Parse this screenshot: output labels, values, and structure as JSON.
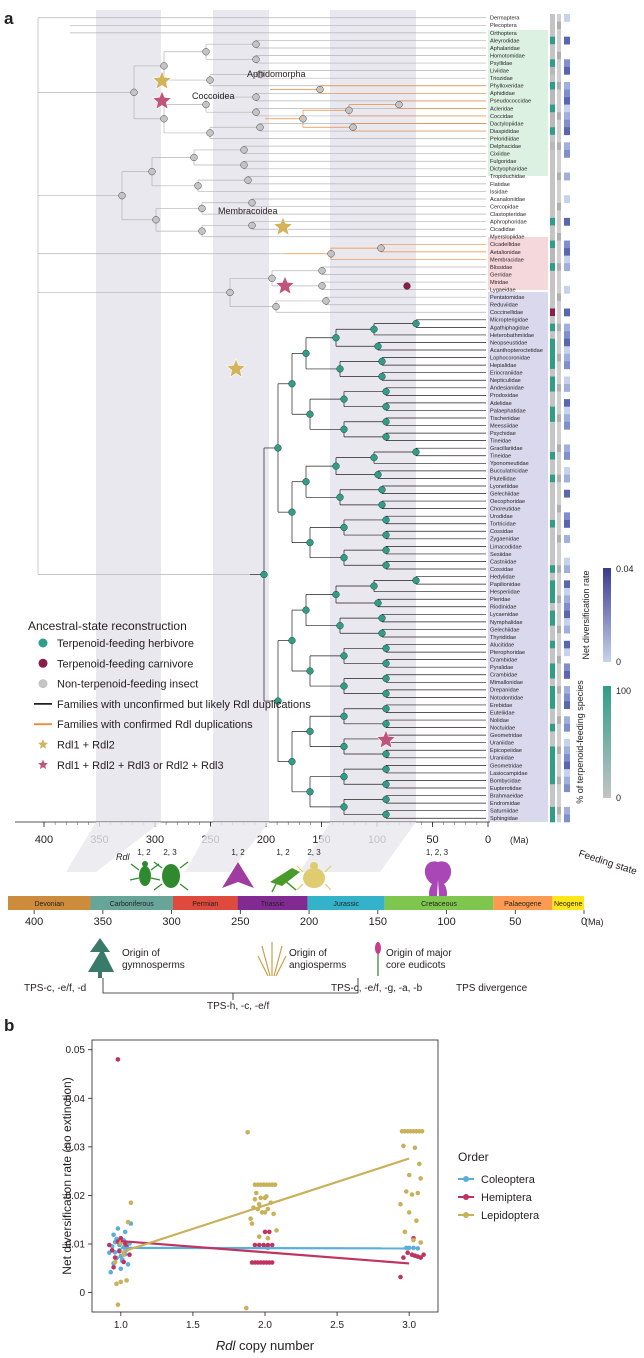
{
  "panel_a": {
    "label": "a",
    "clade_labels": [
      "Aphidomorpha",
      "Coccoidea",
      "Membracoidea"
    ],
    "families_hemiptera": [
      {
        "n": "Dermaptera",
        "c": "grey"
      },
      {
        "n": "Plecoptera",
        "c": "grey"
      },
      {
        "n": "Orthoptera",
        "c": "grey"
      },
      {
        "n": "Aleyrodidae",
        "c": "dark"
      },
      {
        "n": "Aphalaridae",
        "c": "grey"
      },
      {
        "n": "Homotomidae",
        "c": "grey"
      },
      {
        "n": "Psyllidae",
        "c": "dark"
      },
      {
        "n": "Liviidae",
        "c": "dark"
      },
      {
        "n": "Triozidae",
        "c": "grey"
      },
      {
        "n": "Phylloxeridae",
        "c": "dark"
      },
      {
        "n": "Aphididae",
        "c": "dark"
      },
      {
        "n": "Pseudococcidae",
        "c": "dark"
      },
      {
        "n": "Acleridae",
        "c": "dark"
      },
      {
        "n": "Coccidae",
        "c": "dark"
      },
      {
        "n": "Dactylopiidae",
        "c": "dark"
      },
      {
        "n": "Diaspididae",
        "c": "dark"
      },
      {
        "n": "Peloridiidae",
        "c": "grey"
      },
      {
        "n": "Delphacidae",
        "c": "dark"
      },
      {
        "n": "Cixiidae",
        "c": "grey"
      },
      {
        "n": "Fulgoridae",
        "c": "grey"
      },
      {
        "n": "Dictyopharidae",
        "c": "grey"
      },
      {
        "n": "Tropiduchidae",
        "c": "grey"
      },
      {
        "n": "Flatidae",
        "c": "grey"
      },
      {
        "n": "Issidae",
        "c": "grey"
      },
      {
        "n": "Acanaloniidae",
        "c": "grey"
      },
      {
        "n": "Cercopidae",
        "c": "grey"
      },
      {
        "n": "Clastopteridae",
        "c": "grey"
      },
      {
        "n": "Aphrophoridae",
        "c": "dark"
      },
      {
        "n": "Cicadidae",
        "c": "grey"
      },
      {
        "n": "Myerslopiidae",
        "c": "grey"
      },
      {
        "n": "Cicadellidae",
        "c": "dark"
      },
      {
        "n": "Aetalionidae",
        "c": "dark"
      },
      {
        "n": "Membracidae",
        "c": "dark"
      },
      {
        "n": "Blissidae",
        "c": "dark"
      },
      {
        "n": "Gerridae",
        "c": "grey"
      },
      {
        "n": "Miridae",
        "c": "grey"
      },
      {
        "n": "Lygaeidae",
        "c": "grey"
      },
      {
        "n": "Pentatomidae",
        "c": "grey"
      },
      {
        "n": "Reduviidae",
        "c": "grey"
      },
      {
        "n": "Coccinellidae",
        "c": "dark"
      }
    ],
    "families_lepidoptera": [
      {
        "n": "Micropterigidae",
        "c": "grey"
      },
      {
        "n": "Agathiphagidae",
        "c": "dark"
      },
      {
        "n": "Heterobathmiidae",
        "c": "grey"
      },
      {
        "n": "Neopseustidae",
        "c": "dark"
      },
      {
        "n": "Acanthopteroctetidae",
        "c": "dark"
      },
      {
        "n": "Lophocoronidae",
        "c": "dark"
      },
      {
        "n": "Hepialidae",
        "c": "dark"
      },
      {
        "n": "Eriocraniidae",
        "c": "grey"
      },
      {
        "n": "Nepticulidae",
        "c": "dark"
      },
      {
        "n": "Andesianidae",
        "c": "dark"
      },
      {
        "n": "Prodoxidae",
        "c": "grey"
      },
      {
        "n": "Adelidae",
        "c": "grey"
      },
      {
        "n": "Palaephatidae",
        "c": "dark"
      },
      {
        "n": "Tischeriidae",
        "c": "dark"
      },
      {
        "n": "Meessiidae",
        "c": "grey"
      },
      {
        "n": "Psychidae",
        "c": "grey"
      },
      {
        "n": "Tineidae",
        "c": "grey"
      },
      {
        "n": "Gracillariidae",
        "c": "grey"
      },
      {
        "n": "Tineidae",
        "c": "dark"
      },
      {
        "n": "Yponomeutidae",
        "c": "grey"
      },
      {
        "n": "Bucculatricidae",
        "c": "grey"
      },
      {
        "n": "Plutellidae",
        "c": "dark"
      },
      {
        "n": "Lyonetiidae",
        "c": "grey"
      },
      {
        "n": "Gelechiidae",
        "c": "grey"
      },
      {
        "n": "Oecophoridae",
        "c": "grey"
      },
      {
        "n": "Choreutidae",
        "c": "grey"
      },
      {
        "n": "Urodidae",
        "c": "grey"
      },
      {
        "n": "Tortricidae",
        "c": "dark"
      },
      {
        "n": "Cossidae",
        "c": "grey"
      },
      {
        "n": "Zygaenidae",
        "c": "grey"
      },
      {
        "n": "Limacodidae",
        "c": "grey"
      },
      {
        "n": "Sesiidae",
        "c": "grey"
      },
      {
        "n": "Castniidae",
        "c": "grey"
      },
      {
        "n": "Cossidae",
        "c": "dark"
      },
      {
        "n": "Hedylidae",
        "c": "grey"
      },
      {
        "n": "Papilionidae",
        "c": "dark"
      },
      {
        "n": "Hesperiidae",
        "c": "dark"
      },
      {
        "n": "Pieridae",
        "c": "dark"
      },
      {
        "n": "Riodinidae",
        "c": "grey"
      },
      {
        "n": "Lycaenidae",
        "c": "dark"
      },
      {
        "n": "Nymphalidae",
        "c": "dark"
      },
      {
        "n": "Gelechiidae",
        "c": "grey"
      },
      {
        "n": "Thyrididae",
        "c": "grey"
      },
      {
        "n": "Alucitidae",
        "c": "dark"
      },
      {
        "n": "Pterophoridae",
        "c": "grey"
      },
      {
        "n": "Crambidae",
        "c": "grey"
      },
      {
        "n": "Pyralidae",
        "c": "dark"
      },
      {
        "n": "Crambidae",
        "c": "dark"
      },
      {
        "n": "Mimallonidae",
        "c": "grey"
      },
      {
        "n": "Drepanidae",
        "c": "dark"
      },
      {
        "n": "Notodontidae",
        "c": "dark"
      },
      {
        "n": "Erebidae",
        "c": "dark"
      },
      {
        "n": "Euteliidae",
        "c": "grey"
      },
      {
        "n": "Nolidae",
        "c": "grey"
      },
      {
        "n": "Noctuidae",
        "c": "dark"
      },
      {
        "n": "Geometridae",
        "c": "grey"
      },
      {
        "n": "Uraniidae",
        "c": "grey"
      },
      {
        "n": "Epicopeiidae",
        "c": "dark"
      },
      {
        "n": "Uraniidae",
        "c": "dark"
      },
      {
        "n": "Geometridae",
        "c": "dark"
      },
      {
        "n": "Lasiocampidae",
        "c": "dark"
      },
      {
        "n": "Bombycidae",
        "c": "dark"
      },
      {
        "n": "Eupterotidae",
        "c": "grey"
      },
      {
        "n": "Brahmaeidae",
        "c": "grey"
      },
      {
        "n": "Endromidae",
        "c": "grey"
      },
      {
        "n": "Saturniidae",
        "c": "dark"
      },
      {
        "n": "Sphingidae",
        "c": "dark"
      }
    ],
    "legend_title": "Ancestral-state reconstruction",
    "legend_items": [
      {
        "label": "Terpenoid-feeding herbivore",
        "color": "#2e9e88",
        "shape": "dot"
      },
      {
        "label": "Terpenoid-feeding carnivore",
        "color": "#8c1c4a",
        "shape": "dot"
      },
      {
        "label": "Non-terpenoid-feeding insect",
        "color": "#c4c4c4",
        "shape": "dot"
      },
      {
        "label": "Families with unconfirmed but likely Rdl duplications",
        "color": "#231f20",
        "shape": "line"
      },
      {
        "label": "Families with confirmed Rdl duplications",
        "color": "#f08a3c",
        "shape": "line"
      },
      {
        "label": "Rdl1 + Rdl2",
        "color": "#d3b45c",
        "shape": "star"
      },
      {
        "label": "Rdl1 + Rdl2 + Rdl3 or Rdl2 + Rdl3",
        "color": "#c1547a",
        "shape": "star"
      }
    ],
    "top_axis_ticks": [
      "400",
      "350",
      "300",
      "250",
      "200",
      "150",
      "100",
      "50",
      "0"
    ],
    "top_axis_unit": "(Ma)",
    "feeding_label": "Feeding state",
    "colorbar1": {
      "title": "Net diversification rate",
      "max": "0.04",
      "min": "0",
      "low_color": "#c7d3ea",
      "high_color": "#3a3a8f"
    },
    "colorbar2": {
      "title": "% of terpenoid-feeding species",
      "max": "100",
      "min": "0",
      "low_color": "#c4c4c4",
      "high_color": "#2e9e88"
    },
    "rdl_label": "Rdl",
    "silhouette_labels": [
      "1, 2",
      "2, 3",
      "1, 2",
      "1, 2",
      "2, 3",
      "1, 2, 3"
    ],
    "periods": [
      {
        "name": "Devonian",
        "start": 419,
        "end": 359,
        "color": "#cc8c3c"
      },
      {
        "name": "Carboniferous",
        "start": 359,
        "end": 299,
        "color": "#67a599"
      },
      {
        "name": "Permian",
        "start": 299,
        "end": 252,
        "color": "#e04a3c"
      },
      {
        "name": "Triassic",
        "start": 252,
        "end": 201,
        "color": "#812b92"
      },
      {
        "name": "Jurassic",
        "start": 201,
        "end": 145,
        "color": "#34b2c9"
      },
      {
        "name": "Cretaceous",
        "start": 145,
        "end": 66,
        "color": "#7fc64e"
      },
      {
        "name": "Palaeogene",
        "start": 66,
        "end": 23,
        "color": "#fd9a52"
      },
      {
        "name": "Neogene",
        "start": 23,
        "end": 0,
        "color": "#ffe619"
      }
    ],
    "bottom_axis_ticks": [
      "400",
      "350",
      "300",
      "250",
      "200",
      "150",
      "100",
      "50",
      "0"
    ],
    "bottom_axis_unit": "(Ma)",
    "origins": [
      {
        "line1": "Origin of",
        "line2": "gymnosperms"
      },
      {
        "line1": "Origin of",
        "line2": "angiosperms"
      },
      {
        "line1": "Origin of major",
        "line2": "core eudicots"
      }
    ],
    "tps_labels": [
      "TPS-c, -e/f, -d",
      "TPS-h, -c, -e/f",
      "TPS-c, -e/f, -g, -a, -b",
      "TPS divergence"
    ]
  },
  "chart_data": {
    "type": "scatter",
    "panel_label": "b",
    "xlabel_italic": "Rdl",
    "xlabel_rest": " copy number",
    "ylabel": "Net diversification rate (no extinction)",
    "x_ticks": [
      "1.0",
      "1.5",
      "2.0",
      "2.5",
      "3.0"
    ],
    "y_ticks": [
      "0",
      "0.01",
      "0.02",
      "0.03",
      "0.04",
      "0.05"
    ],
    "xlim": [
      0.8,
      3.2
    ],
    "ylim": [
      -0.004,
      0.052
    ],
    "legend_title": "Order",
    "series": [
      {
        "name": "Coleoptera",
        "color": "#5aaedc",
        "fit": [
          [
            1,
            0.0092
          ],
          [
            3,
            0.0091
          ]
        ],
        "points": [
          [
            0.93,
            0.0042
          ],
          [
            0.95,
            0.006
          ],
          [
            0.96,
            0.0083
          ],
          [
            0.97,
            0.011
          ],
          [
            0.98,
            0.0132
          ],
          [
            0.99,
            0.0098
          ],
          [
            1.0,
            0.0075
          ],
          [
            1.01,
            0.0065
          ],
          [
            1.02,
            0.0108
          ],
          [
            1.03,
            0.0125
          ],
          [
            1.04,
            0.0088
          ],
          [
            1.05,
            0.0058
          ],
          [
            0.94,
            0.0095
          ],
          [
            0.97,
            0.0071
          ],
          [
            1.0,
            0.0049
          ],
          [
            1.03,
            0.0079
          ],
          [
            1.06,
            0.0101
          ],
          [
            0.95,
            0.0119
          ],
          [
            0.99,
            0.0087
          ],
          [
            1.02,
            0.0093
          ],
          [
            1.07,
            0.0142
          ],
          [
            0.92,
            0.0082
          ],
          [
            0.96,
            0.0104
          ],
          [
            1.01,
            0.0068
          ],
          [
            2.0,
            0.0094
          ],
          [
            2.02,
            0.0092
          ],
          [
            2.98,
            0.0092
          ],
          [
            3.0,
            0.0092
          ],
          [
            3.03,
            0.0092
          ],
          [
            3.06,
            0.0091
          ]
        ]
      },
      {
        "name": "Hemiptera",
        "color": "#c0335f",
        "fit": [
          [
            1,
            0.0106
          ],
          [
            3,
            0.006
          ]
        ],
        "points": [
          [
            0.98,
            0.048
          ],
          [
            0.92,
            0.0098
          ],
          [
            0.94,
            0.0087
          ],
          [
            0.96,
            0.0072
          ],
          [
            0.98,
            0.0105
          ],
          [
            1.0,
            0.0112
          ],
          [
            1.02,
            0.0063
          ],
          [
            1.04,
            0.0094
          ],
          [
            1.06,
            0.0078
          ],
          [
            0.95,
            0.0052
          ],
          [
            0.99,
            0.0085
          ],
          [
            1.03,
            0.0101
          ],
          [
            1.91,
            0.0062
          ],
          [
            1.93,
            0.0062
          ],
          [
            1.95,
            0.0062
          ],
          [
            1.97,
            0.0062
          ],
          [
            1.99,
            0.0062
          ],
          [
            2.01,
            0.0062
          ],
          [
            2.03,
            0.0062
          ],
          [
            2.05,
            0.0062
          ],
          [
            1.93,
            0.0098
          ],
          [
            1.96,
            0.0098
          ],
          [
            1.99,
            0.0098
          ],
          [
            2.02,
            0.0098
          ],
          [
            2.05,
            0.0098
          ],
          [
            2.0,
            0.0125
          ],
          [
            2.03,
            0.0125
          ],
          [
            2.94,
            0.0032
          ],
          [
            2.96,
            0.0072
          ],
          [
            2.99,
            0.0082
          ],
          [
            3.02,
            0.0078
          ],
          [
            3.04,
            0.0076
          ],
          [
            3.06,
            0.0074
          ],
          [
            3.08,
            0.0072
          ],
          [
            3.1,
            0.0078
          ],
          [
            3.03,
            0.0112
          ]
        ]
      },
      {
        "name": "Lepidoptera",
        "color": "#c9b15a",
        "fit": [
          [
            1,
            0.0083
          ],
          [
            3,
            0.0276
          ]
        ],
        "points": [
          [
            0.98,
            -0.0025
          ],
          [
            0.97,
            0.0018
          ],
          [
            1.0,
            0.0022
          ],
          [
            1.04,
            0.0025
          ],
          [
            1.02,
            0.0078
          ],
          [
            1.05,
            0.0145
          ],
          [
            1.07,
            0.0185
          ],
          [
            0.96,
            0.0063
          ],
          [
            1.0,
            0.0102
          ],
          [
            1.88,
            0.033
          ],
          [
            1.87,
            -0.0032
          ],
          [
            1.9,
            0.0152
          ],
          [
            1.92,
            0.0175
          ],
          [
            1.94,
            0.0205
          ],
          [
            1.96,
            0.0182
          ],
          [
            1.98,
            0.0165
          ],
          [
            2.0,
            0.0195
          ],
          [
            2.02,
            0.0172
          ],
          [
            2.04,
            0.0185
          ],
          [
            2.06,
            0.0162
          ],
          [
            1.93,
            0.0222
          ],
          [
            1.95,
            0.0222
          ],
          [
            1.97,
            0.0222
          ],
          [
            1.99,
            0.0222
          ],
          [
            2.01,
            0.0222
          ],
          [
            2.03,
            0.0222
          ],
          [
            2.05,
            0.0222
          ],
          [
            2.07,
            0.0222
          ],
          [
            1.93,
            0.0192
          ],
          [
            1.97,
            0.0195
          ],
          [
            2.01,
            0.0198
          ],
          [
            1.95,
            0.0172
          ],
          [
            2.0,
            0.0165
          ],
          [
            1.91,
            0.0142
          ],
          [
            2.08,
            0.0128
          ],
          [
            1.96,
            0.0115
          ],
          [
            2.02,
            0.0112
          ],
          [
            2.95,
            0.0332
          ],
          [
            2.97,
            0.0332
          ],
          [
            2.99,
            0.0332
          ],
          [
            3.01,
            0.0332
          ],
          [
            3.03,
            0.0332
          ],
          [
            3.05,
            0.0332
          ],
          [
            3.07,
            0.0332
          ],
          [
            3.09,
            0.0332
          ],
          [
            2.96,
            0.0302
          ],
          [
            3.04,
            0.0298
          ],
          [
            3.07,
            0.0265
          ],
          [
            3.0,
            0.0242
          ],
          [
            3.08,
            0.0235
          ],
          [
            2.98,
            0.0208
          ],
          [
            3.02,
            0.0202
          ],
          [
            3.06,
            0.0205
          ],
          [
            2.94,
            0.0182
          ],
          [
            3.0,
            0.0165
          ],
          [
            3.05,
            0.0148
          ],
          [
            2.97,
            0.0125
          ],
          [
            3.03,
            0.0108
          ],
          [
            3.08,
            0.0103
          ]
        ]
      }
    ]
  }
}
